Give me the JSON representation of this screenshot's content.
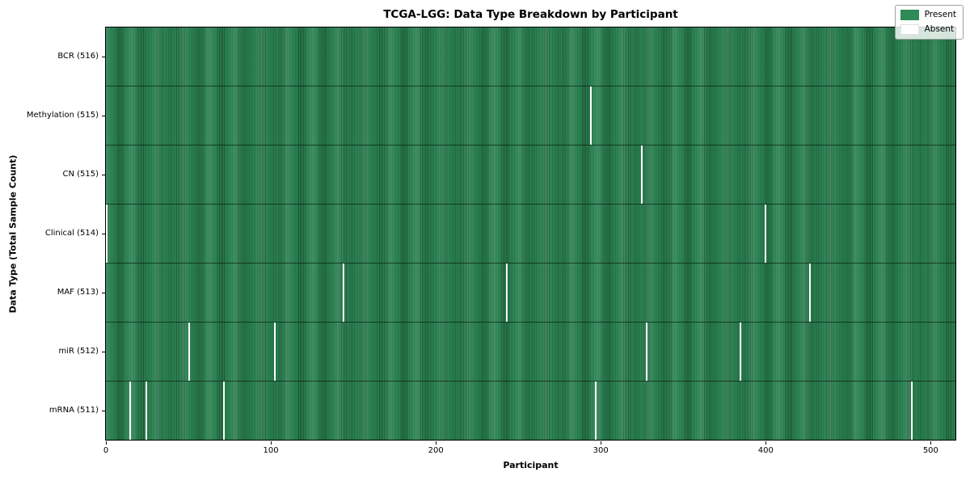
{
  "figure": {
    "title": "TCGA-LGG: Data Type Breakdown by Participant",
    "xlabel": "Participant",
    "ylabel": "Data Type (Total Sample Count)"
  },
  "chart_data": {
    "type": "heatmap",
    "title": "TCGA-LGG: Data Type Breakdown by Participant",
    "xlabel": "Participant",
    "ylabel": "Data Type (Total Sample Count)",
    "n_participants": 516,
    "x_ticks": [
      0,
      100,
      200,
      300,
      400,
      500
    ],
    "xlim": [
      0,
      516
    ],
    "grid": false,
    "legend_position": "upper right",
    "colors": {
      "present": "#2e8b57",
      "absent": "#ffffff",
      "cell_edge": "#1f5c39"
    },
    "legend": [
      {
        "label": "Present",
        "color": "#2e8b57"
      },
      {
        "label": "Absent",
        "color": "#ffffff"
      }
    ],
    "rows": [
      {
        "data_type": "BCR",
        "label": "BCR (516)",
        "present_count": 516,
        "absent_participants": []
      },
      {
        "data_type": "Methylation",
        "label": "Methylation (515)",
        "present_count": 515,
        "absent_participants": [
          294
        ]
      },
      {
        "data_type": "CN",
        "label": "CN (515)",
        "present_count": 515,
        "absent_participants": [
          325
        ]
      },
      {
        "data_type": "Clinical",
        "label": "Clinical (514)",
        "present_count": 514,
        "absent_participants": [
          0,
          400
        ]
      },
      {
        "data_type": "MAF",
        "label": "MAF (513)",
        "present_count": 513,
        "absent_participants": [
          144,
          243,
          427
        ]
      },
      {
        "data_type": "miR",
        "label": "miR (512)",
        "present_count": 512,
        "absent_participants": [
          50,
          102,
          328,
          385
        ]
      },
      {
        "data_type": "mRNA",
        "label": "mRNA (511)",
        "present_count": 511,
        "absent_participants": [
          14,
          24,
          71,
          297,
          489
        ]
      }
    ]
  }
}
